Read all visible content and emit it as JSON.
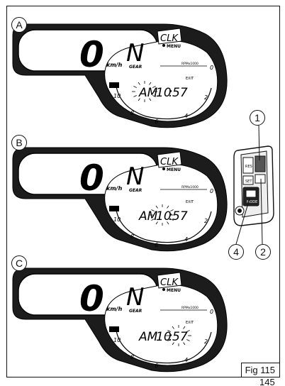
{
  "figure": {
    "caption": "Fig 115",
    "page_number": "145"
  },
  "panels": [
    {
      "label": "A",
      "speed": "0",
      "speed_unit": "km/h",
      "gear": "N",
      "gear_label": "GEAR",
      "title": "CLK",
      "menu": "MENU",
      "rpm": "RPMx1000",
      "exit": "EXIT",
      "ampm": "AM",
      "hours": "10",
      "minutes": "57",
      "blink": "ampm"
    },
    {
      "label": "B",
      "speed": "0",
      "speed_unit": "km/h",
      "gear": "N",
      "gear_label": "GEAR",
      "title": "CLK",
      "menu": "MENU",
      "rpm": "RPMx1000",
      "exit": "EXIT",
      "ampm": "AM",
      "hours": "10",
      "minutes": "57",
      "blink": "hours"
    },
    {
      "label": "C",
      "speed": "0",
      "speed_unit": "km/h",
      "gear": "N",
      "gear_label": "GEAR",
      "title": "CLK",
      "menu": "MENU",
      "rpm": "RPMx1000",
      "exit": "EXIT",
      "ampm": "AM",
      "hours": "10",
      "minutes": "57",
      "blink": "minutes"
    }
  ],
  "scale": [
    "10",
    "8",
    "6",
    "4",
    "2",
    "0"
  ],
  "switch": {
    "callouts": [
      "1",
      "2",
      "4"
    ],
    "sw_labels": [
      "RES",
      "SET",
      "MODE"
    ]
  }
}
